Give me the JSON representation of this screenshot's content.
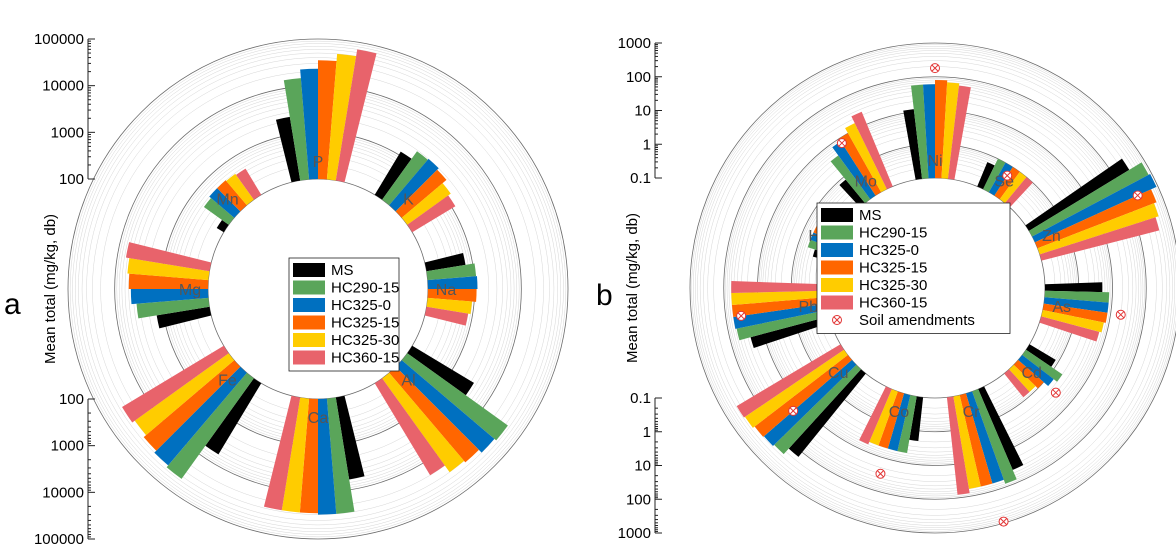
{
  "colors": {
    "MS": "#000000",
    "HC290-15": "#5aa55a",
    "HC325-0": "#0070c0",
    "HC325-15": "#ff6600",
    "HC325-30": "#ffcc00",
    "HC360-15": "#e8636b",
    "Soil amendments": "#e23434"
  },
  "legend_entries": [
    "MS",
    "HC290-15",
    "HC325-0",
    "HC325-15",
    "HC325-30",
    "HC360-15"
  ],
  "chart_data": [
    {
      "type": "bar",
      "subtype": "radial",
      "panel_label": "a",
      "ylabel": "Mean total (mg/kg, db)",
      "scale": "log",
      "ylim": [
        100,
        100000
      ],
      "upper_ticks": [
        "100",
        "1000",
        "10000",
        "100000"
      ],
      "lower_ticks": [
        "100",
        "1000",
        "10000",
        "100000"
      ],
      "categories": [
        "P",
        "K",
        "Na",
        "Al",
        "Ca",
        "Fe",
        "Mg",
        "Mn"
      ],
      "series": [
        {
          "name": "MS",
          "values": [
            2400,
            1200,
            700,
            3500,
            6000,
            6000,
            1400,
            150
          ]
        },
        {
          "name": "HC290-15",
          "values": [
            15000,
            1900,
            1100,
            45000,
            30000,
            45000,
            3500,
            450
          ]
        },
        {
          "name": "HC325-0",
          "values": [
            23000,
            2000,
            1150,
            40000,
            30000,
            40000,
            4500,
            500
          ]
        },
        {
          "name": "HC325-15",
          "values": [
            35000,
            1800,
            1100,
            33000,
            28000,
            35000,
            5000,
            500
          ]
        },
        {
          "name": "HC325-30",
          "values": [
            50000,
            1400,
            900,
            30000,
            28000,
            30000,
            5500,
            480
          ]
        },
        {
          "name": "HC360-15",
          "values": [
            70000,
            1200,
            800,
            20000,
            28000,
            35000,
            6500,
            450
          ]
        }
      ]
    },
    {
      "type": "bar",
      "subtype": "radial",
      "panel_label": "b",
      "ylabel": "Mean total (mg/kg, db)",
      "scale": "log",
      "ylim": [
        0.1,
        1000
      ],
      "upper_ticks": [
        "0.1",
        "1",
        "10",
        "100",
        "1000"
      ],
      "lower_ticks": [
        "0.1",
        "1",
        "10",
        "100",
        "1000"
      ],
      "categories": [
        "Ni",
        "Se",
        "Zn",
        "As",
        "Cd",
        "Cr",
        "Co",
        "Cu",
        "Pb",
        "Hg",
        "Mo"
      ],
      "series": [
        {
          "name": "MS",
          "values": [
            12,
            0.6,
            300,
            5,
            0.8,
            40,
            2,
            150,
            25,
            0.3,
            0.8
          ]
        },
        {
          "name": "HC290-15",
          "values": [
            60,
            1.0,
            800,
            8,
            2.0,
            80,
            5,
            250,
            55,
            0.5,
            4
          ]
        },
        {
          "name": "HC325-0",
          "values": [
            60,
            1.0,
            900,
            8,
            1.5,
            60,
            5,
            280,
            60,
            0.5,
            8
          ]
        },
        {
          "name": "HC325-15",
          "values": [
            80,
            1.0,
            600,
            8,
            1.0,
            60,
            5,
            300,
            60,
            0.5,
            10
          ]
        },
        {
          "name": "HC325-30",
          "values": [
            70,
            1.0,
            500,
            7,
            0.8,
            60,
            5,
            350,
            60,
            0.5,
            15
          ]
        },
        {
          "name": "HC360-15",
          "values": [
            60,
            1.0,
            400,
            6,
            0.8,
            80,
            6,
            380,
            60,
            0.5,
            25
          ]
        }
      ],
      "soil_amendments": [
        {
          "category": "Ni",
          "value": 180
        },
        {
          "category": "Se",
          "value": 0.5
        },
        {
          "category": "Zn",
          "value": 220
        },
        {
          "category": "As",
          "value": 20
        },
        {
          "category": "Cd",
          "value": 3
        },
        {
          "category": "Cr",
          "value": 900
        },
        {
          "category": "Co",
          "value": 30
        },
        {
          "category": "Cu",
          "value": 20
        },
        {
          "category": "Pb",
          "value": 35
        },
        {
          "category": "Hg",
          "value": 0.1
        },
        {
          "category": "Mo",
          "value": 7
        }
      ],
      "extra_legend_entry": "Soil amendments"
    }
  ]
}
